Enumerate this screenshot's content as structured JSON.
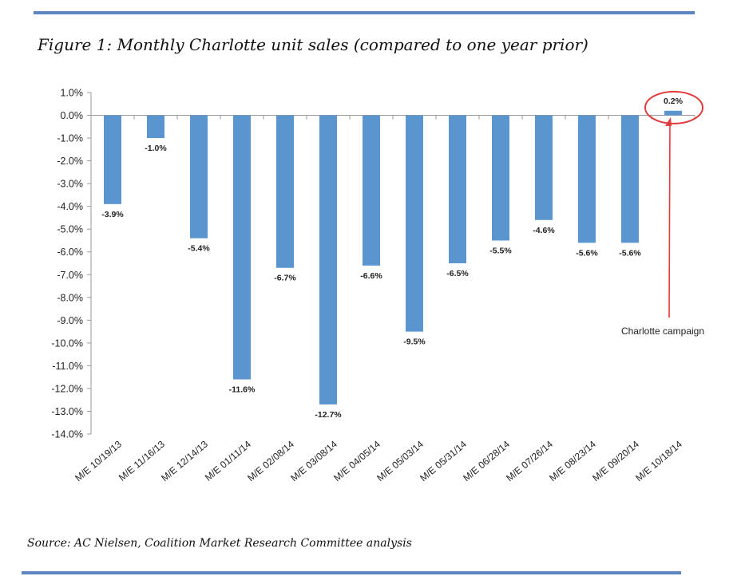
{
  "figure_title": "Figure 1: Monthly Charlotte unit sales (compared to one year prior)",
  "source": "Source: AC Nielsen, Coalition Market Research Committee analysis",
  "colors": {
    "bar": "#5b95cf",
    "rule": "#5b86c0",
    "highlight": "#e23b3b"
  },
  "chart_data": {
    "type": "bar",
    "title": "Monthly Charlotte unit sales (compared to one year prior)",
    "xlabel": "",
    "ylabel": "",
    "ylim": [
      -14,
      1
    ],
    "ytick_step": 1,
    "grid": false,
    "categories": [
      "M/E 10/19/13",
      "M/E 11/16/13",
      "M/E 12/14/13",
      "M/E 01/11/14",
      "M/E 02/08/14",
      "M/E 03/08/14",
      "M/E 04/05/14",
      "M/E 05/03/14",
      "M/E 05/31/14",
      "M/E 06/28/14",
      "M/E 07/26/14",
      "M/E 08/23/14",
      "M/E 09/20/14",
      "M/E 10/18/14"
    ],
    "values": [
      -3.9,
      -1.0,
      -5.4,
      -11.6,
      -6.7,
      -12.7,
      -6.6,
      -9.5,
      -6.5,
      -5.5,
      -4.6,
      -5.6,
      -5.6,
      0.2
    ],
    "data_labels": [
      "-3.9%",
      "-1.0%",
      "-5.4%",
      "-11.6%",
      "-6.7%",
      "-12.7%",
      "-6.6%",
      "-9.5%",
      "-6.5%",
      "-5.5%",
      "-4.6%",
      "-5.6%",
      "-5.6%",
      "0.2%"
    ],
    "annotation": {
      "text": "Charlotte campaign",
      "target_category": "M/E 10/18/14"
    }
  }
}
